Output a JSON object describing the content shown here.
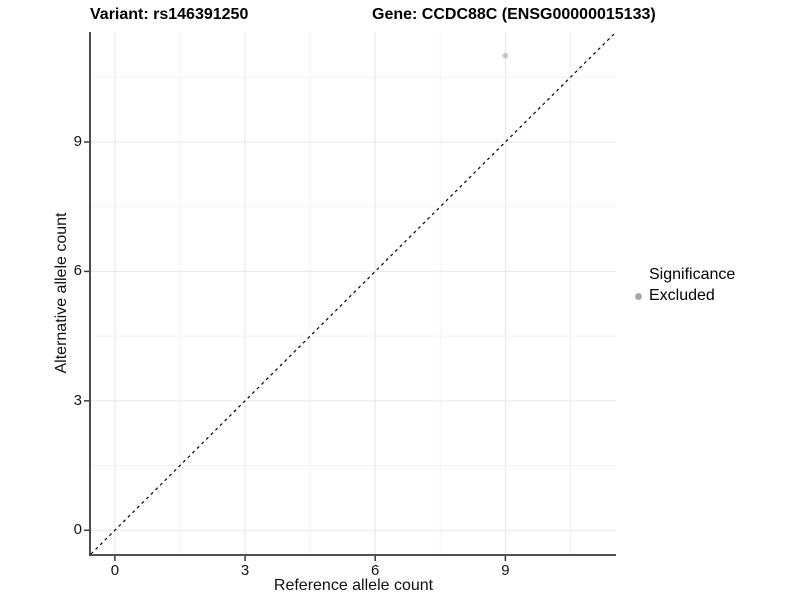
{
  "header": {
    "variant_title": "Variant: rs146391250",
    "gene_title": "Gene: CCDC88C (ENSG00000015133)"
  },
  "chart_data": {
    "type": "scatter",
    "xlabel": "Reference allele count",
    "ylabel": "Alternative allele count",
    "xlim": [
      -0.55,
      11.55
    ],
    "ylim": [
      -0.55,
      11.55
    ],
    "xticks": [
      0,
      3,
      6,
      9
    ],
    "yticks": [
      0,
      3,
      6,
      9
    ],
    "minor_ticks": [
      1.5,
      4.5,
      7.5,
      10.5
    ],
    "grid": true,
    "points": [
      {
        "x": 9,
        "y": 11,
        "significance": "Excluded"
      }
    ],
    "identity_line": {
      "slope": 1,
      "intercept": 0,
      "style": "dashed",
      "color": "#000000"
    },
    "legend": {
      "title": "Significance",
      "position": "right",
      "items": [
        {
          "label": "Excluded",
          "color": "#a8a8a8"
        }
      ]
    },
    "colors": {
      "point": "#c7c7c7",
      "grid_major": "#e7e7e7",
      "grid_minor": "#f2f2f2",
      "axis_line": "#383838",
      "tick_text": "#141414"
    }
  }
}
